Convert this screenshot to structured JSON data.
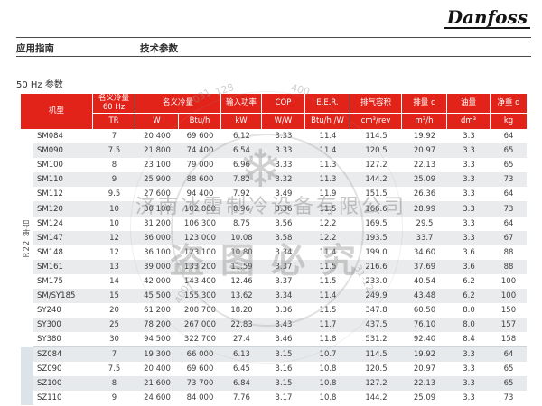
{
  "page": {
    "logo_text": "Danfoss",
    "breadcrumb_left": "应用指南",
    "breadcrumb_right": "技术参数",
    "section_title": "50 Hz 参数"
  },
  "watermark": {
    "company": "济南冰雷制冷设备有限公司",
    "warning": "盗图必究",
    "snowflake_icon": "❄",
    "ring_fragment_1": "128",
    "ring_fragment_2": "400",
    "ring_fragment_3": "031",
    "ring_fragment_4": "400-0",
    "ring_fragment_5": "31-128"
  },
  "colors": {
    "header_red": "#E2231A",
    "stripe_gray": "#e9ebec",
    "sz_band": "#dce3e9"
  },
  "table": {
    "col_model": "机型",
    "col_nominal_60hz_line1": "名义冷量",
    "col_nominal_60hz_line2": "60 Hz",
    "col_nominal": "名义冷量",
    "col_input_power": "输入功率",
    "col_cop": "COP",
    "col_eer": "E.E.R.",
    "col_discharge_volume": "排气容积",
    "col_displacement": "排量 c",
    "col_oil": "油量",
    "col_net_weight": "净重 d",
    "units": [
      "TR",
      "W",
      "Btu/h",
      "kW",
      "W/W",
      "Btu/h /W",
      "cm³/rev",
      "m³/h",
      "dm³",
      "kg"
    ],
    "group_r22_label": "R22 单台",
    "sz_start_index": 15,
    "rows": [
      [
        "SM084",
        "7",
        "20 400",
        "69 600",
        "6.12",
        "3.33",
        "11.4",
        "114.5",
        "19.92",
        "3.3",
        "64"
      ],
      [
        "SM090",
        "7.5",
        "21 800",
        "74 400",
        "6.54",
        "3.33",
        "11.4",
        "120.5",
        "20.97",
        "3.3",
        "65"
      ],
      [
        "SM100",
        "8",
        "23 100",
        "79 000",
        "6.96",
        "3.33",
        "11.3",
        "127.2",
        "22.13",
        "3.3",
        "65"
      ],
      [
        "SM110",
        "9",
        "25 900",
        "88 600",
        "7.82",
        "3.32",
        "11.3",
        "144.2",
        "25.09",
        "3.3",
        "73"
      ],
      [
        "SM112",
        "9.5",
        "27 600",
        "94 400",
        "7.92",
        "3.49",
        "11.9",
        "151.5",
        "26.36",
        "3.3",
        "64"
      ],
      [
        "SM120",
        "10",
        "30 100",
        "102 800",
        "8.96",
        "3.36",
        "11.5",
        "166.6",
        "28.99",
        "3.3",
        "73"
      ],
      [
        "SM124",
        "10",
        "31 200",
        "106 300",
        "8.75",
        "3.56",
        "12.2",
        "169.5",
        "29.5",
        "3.3",
        "64"
      ],
      [
        "SM147",
        "12",
        "36 000",
        "123 000",
        "10.08",
        "3.58",
        "12.2",
        "193.5",
        "33.7",
        "3.3",
        "67"
      ],
      [
        "SM148",
        "12",
        "36 100",
        "123 100",
        "10.80",
        "3.34",
        "11.4",
        "199.0",
        "34.60",
        "3.6",
        "88"
      ],
      [
        "SM161",
        "13",
        "39 000",
        "133 200",
        "11.59",
        "3.37",
        "11.5",
        "216.6",
        "37.69",
        "3.6",
        "88"
      ],
      [
        "SM175",
        "14",
        "42 000",
        "143 400",
        "12.46",
        "3.37",
        "11.5",
        "233.0",
        "40.54",
        "6.2",
        "100"
      ],
      [
        "SM/SY185",
        "15",
        "45 500",
        "155 300",
        "13.62",
        "3.34",
        "11.4",
        "249.9",
        "43.48",
        "6.2",
        "100"
      ],
      [
        "SY240",
        "20",
        "61 200",
        "208 700",
        "18.20",
        "3.36",
        "11.5",
        "347.8",
        "60.50",
        "8.0",
        "150"
      ],
      [
        "SY300",
        "25",
        "78 200",
        "267 000",
        "22.83",
        "3.43",
        "11.7",
        "437.5",
        "76.10",
        "8.0",
        "157"
      ],
      [
        "SY380",
        "30",
        "94 500",
        "322 700",
        "27.4",
        "3.46",
        "11.8",
        "531.2",
        "92.40",
        "8.4",
        "158"
      ],
      [
        "SZ084",
        "7",
        "19 300",
        "66 000",
        "6.13",
        "3.15",
        "10.7",
        "114.5",
        "19.92",
        "3.3",
        "64"
      ],
      [
        "SZ090",
        "7.5",
        "20 400",
        "69 600",
        "6.45",
        "3.16",
        "10.8",
        "120.5",
        "20.97",
        "3.3",
        "65"
      ],
      [
        "SZ100",
        "8",
        "21 600",
        "73 700",
        "6.84",
        "3.15",
        "10.8",
        "127.2",
        "22.13",
        "3.3",
        "65"
      ],
      [
        "SZ110",
        "9",
        "24 600",
        "84 000",
        "7.76",
        "3.17",
        "10.8",
        "144.2",
        "25.09",
        "3.3",
        "73"
      ]
    ]
  }
}
